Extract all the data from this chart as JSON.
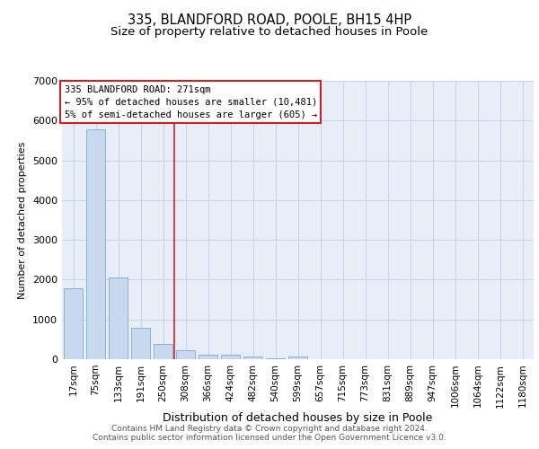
{
  "title1": "335, BLANDFORD ROAD, POOLE, BH15 4HP",
  "title2": "Size of property relative to detached houses in Poole",
  "xlabel": "Distribution of detached houses by size in Poole",
  "ylabel": "Number of detached properties",
  "bar_labels": [
    "17sqm",
    "75sqm",
    "133sqm",
    "191sqm",
    "250sqm",
    "308sqm",
    "366sqm",
    "424sqm",
    "482sqm",
    "540sqm",
    "599sqm",
    "657sqm",
    "715sqm",
    "773sqm",
    "831sqm",
    "889sqm",
    "947sqm",
    "1006sqm",
    "1064sqm",
    "1122sqm",
    "1180sqm"
  ],
  "bar_values": [
    1780,
    5780,
    2050,
    800,
    380,
    230,
    110,
    110,
    70,
    30,
    75,
    0,
    0,
    0,
    0,
    0,
    0,
    0,
    0,
    0,
    0
  ],
  "bar_color": "#c8d8ee",
  "bar_edge_color": "#7aaad0",
  "vline_x": 4.5,
  "vline_color": "#cc2222",
  "annotation_box_text": "335 BLANDFORD ROAD: 271sqm\n← 95% of detached houses are smaller (10,481)\n5% of semi-detached houses are larger (605) →",
  "annotation_box_color": "#cc2222",
  "ylim": [
    0,
    7000
  ],
  "yticks": [
    0,
    1000,
    2000,
    3000,
    4000,
    5000,
    6000,
    7000
  ],
  "grid_color": "#c8d4e8",
  "bg_color": "#e8eef8",
  "footer_text": "Contains HM Land Registry data © Crown copyright and database right 2024.\nContains public sector information licensed under the Open Government Licence v3.0.",
  "title1_fontsize": 10.5,
  "title2_fontsize": 9.5,
  "xlabel_fontsize": 9,
  "ylabel_fontsize": 8,
  "tick_fontsize": 7.5,
  "annotation_fontsize": 7.5,
  "footer_fontsize": 6.5
}
